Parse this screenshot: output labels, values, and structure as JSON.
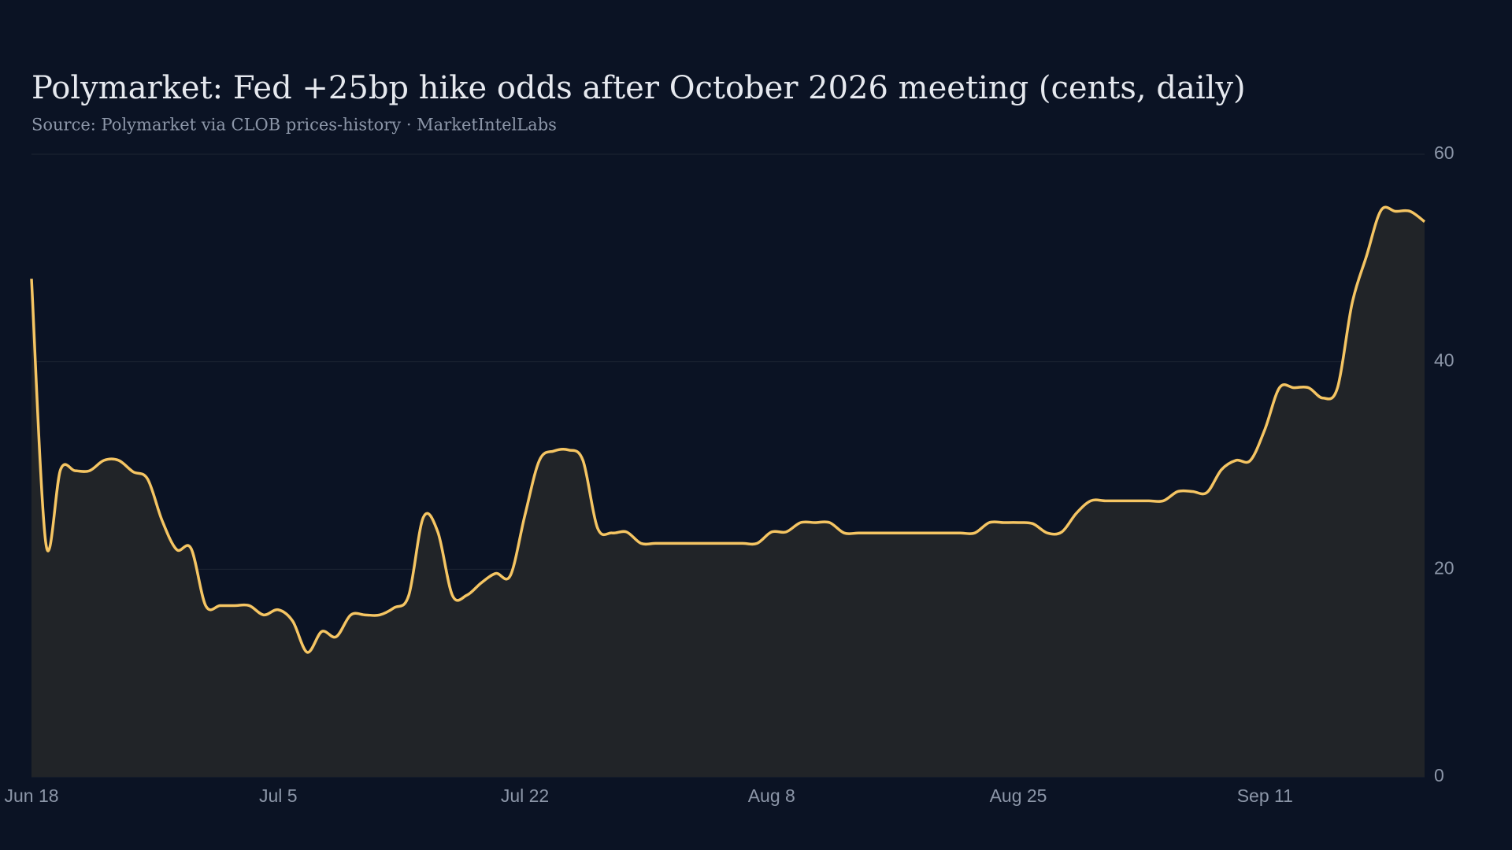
{
  "chart_data": {
    "type": "area",
    "title": "Polymarket: Fed +25bp hike odds after October 2026 meeting (cents, daily)",
    "subtitle": "Source: Polymarket via CLOB prices-history · MarketIntelLabs",
    "x": [
      "Jun 18",
      "Jun 19",
      "Jun 20",
      "Jun 21",
      "Jun 22",
      "Jun 23",
      "Jun 24",
      "Jun 25",
      "Jun 26",
      "Jun 27",
      "Jun 28",
      "Jun 29",
      "Jun 30",
      "Jul 1",
      "Jul 2",
      "Jul 3",
      "Jul 4",
      "Jul 5",
      "Jul 6",
      "Jul 7",
      "Jul 8",
      "Jul 9",
      "Jul 10",
      "Jul 11",
      "Jul 12",
      "Jul 13",
      "Jul 14",
      "Jul 15",
      "Jul 16",
      "Jul 17",
      "Jul 18",
      "Jul 19",
      "Jul 20",
      "Jul 21",
      "Jul 22",
      "Jul 23",
      "Jul 24",
      "Jul 25",
      "Jul 26",
      "Jul 27",
      "Jul 28",
      "Jul 29",
      "Jul 30",
      "Jul 31",
      "Aug 1",
      "Aug 2",
      "Aug 3",
      "Aug 4",
      "Aug 5",
      "Aug 6",
      "Aug 7",
      "Aug 8",
      "Aug 9",
      "Aug 10",
      "Aug 11",
      "Aug 12",
      "Aug 13",
      "Aug 14",
      "Aug 15",
      "Aug 16",
      "Aug 17",
      "Aug 18",
      "Aug 19",
      "Aug 20",
      "Aug 21",
      "Aug 22",
      "Aug 23",
      "Aug 24",
      "Aug 25",
      "Aug 26",
      "Aug 27",
      "Aug 28",
      "Aug 29",
      "Aug 30",
      "Aug 31",
      "Sep 1",
      "Sep 2",
      "Sep 3",
      "Sep 4",
      "Sep 5",
      "Sep 6",
      "Sep 7",
      "Sep 8",
      "Sep 9",
      "Sep 10",
      "Sep 11",
      "Sep 12",
      "Sep 13",
      "Sep 14",
      "Sep 15",
      "Sep 16",
      "Sep 17",
      "Sep 18",
      "Sep 19",
      "Sep 20",
      "Sep 21",
      "Sep 22"
    ],
    "values": [
      48,
      22.4,
      29.6,
      29.5,
      29.5,
      30.5,
      30.5,
      29.4,
      28.7,
      24.7,
      21.9,
      22,
      16.5,
      16.5,
      16.5,
      16.5,
      15.6,
      16.1,
      15,
      12,
      14,
      13.5,
      15.6,
      15.6,
      15.6,
      16.3,
      17.5,
      25,
      23.6,
      17.5,
      17.5,
      18.7,
      19.6,
      19.4,
      25.2,
      30.5,
      31.4,
      31.5,
      30.5,
      24,
      23.5,
      23.6,
      22.5,
      22.5,
      22.5,
      22.5,
      22.5,
      22.5,
      22.5,
      22.5,
      22.5,
      23.6,
      23.6,
      24.5,
      24.5,
      24.5,
      23.5,
      23.5,
      23.5,
      23.5,
      23.5,
      23.5,
      23.5,
      23.5,
      23.5,
      23.5,
      24.5,
      24.5,
      24.5,
      24.4,
      23.5,
      23.6,
      25.4,
      26.6,
      26.6,
      26.6,
      26.6,
      26.6,
      26.6,
      27.5,
      27.5,
      27.4,
      29.6,
      30.5,
      30.5,
      33.5,
      37.5,
      37.5,
      37.5,
      36.5,
      37.5,
      45.6,
      50.2,
      54.6,
      54.5,
      54.5,
      53.5
    ],
    "color": "#f5c563",
    "fill": "#212428",
    "xticks": [
      "Jun 18",
      "Jul 5",
      "Jul 22",
      "Aug 8",
      "Aug 25",
      "Sep 11"
    ],
    "ylim": [
      0,
      60
    ],
    "yticks": [
      0,
      20,
      40,
      60
    ],
    "grid": true
  }
}
